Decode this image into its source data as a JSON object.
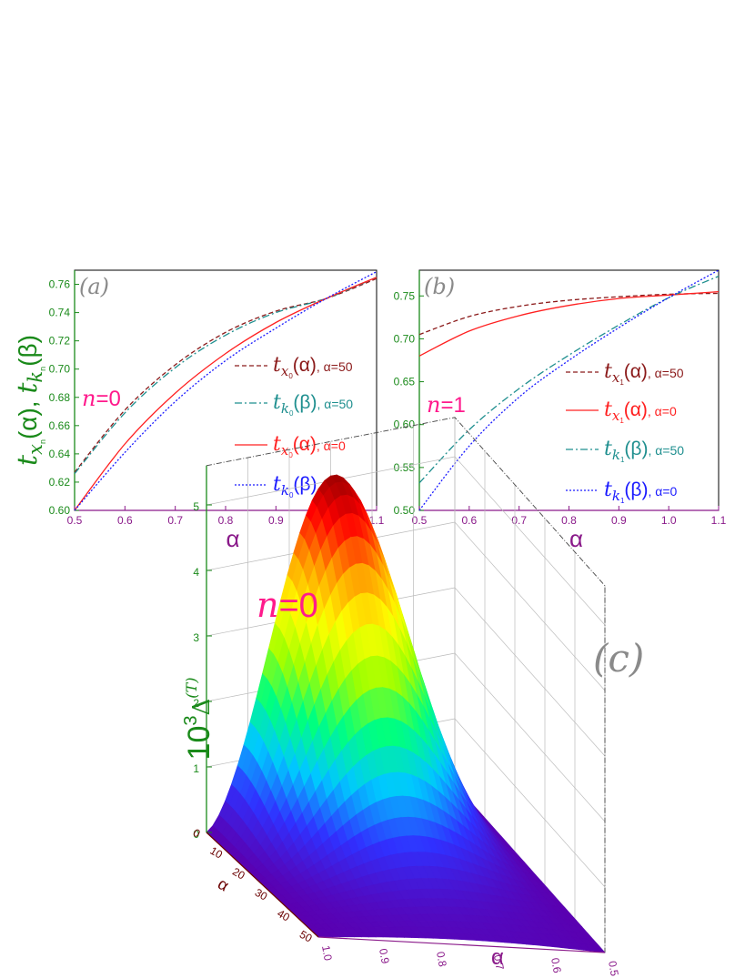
{
  "chart_data": [
    {
      "type": "line",
      "panel_label": "(a)",
      "annotation": {
        "n_italic": "n",
        "text": "=0"
      },
      "xlabel": "α",
      "ylabel": {
        "t1": "t",
        "s1": "x",
        "sub1": "n",
        "p1": "(α), ",
        "t2": "t",
        "s2": "k",
        "sub2": "n",
        "p2": "(β)"
      },
      "xlim": [
        0.5,
        1.1
      ],
      "ylim": [
        0.6,
        0.77
      ],
      "xticks": [
        "0.5",
        "0.6",
        "0.7",
        "0.8",
        "0.9",
        "1.0",
        "1.1"
      ],
      "yticks": [
        "0.60",
        "0.62",
        "0.64",
        "0.66",
        "0.68",
        "0.70",
        "0.72",
        "0.74",
        "0.76"
      ],
      "legend": [
        {
          "t": "t",
          "s": "x",
          "sub": "0",
          "arg": "(α)",
          "extra": ", α=50",
          "color": "#8b1a1a",
          "dash": "5,3"
        },
        {
          "t": "t",
          "s": "k",
          "sub": "0",
          "arg": "(β)",
          "extra": ", α=50",
          "color": "#1f8f8f",
          "dash": "8,3,2,3"
        },
        {
          "t": "t",
          "s": "x",
          "sub": "0",
          "arg": "(α)",
          "extra": ", α=0",
          "color": "#ff2020",
          "dash": ""
        },
        {
          "t": "t",
          "s": "k",
          "sub": "0",
          "arg": "(β)",
          "extra": ", α=0",
          "color": "#1a1aff",
          "dash": "2,2"
        }
      ],
      "series": [
        {
          "x": [
            0.5,
            0.6,
            0.7,
            0.8,
            0.9,
            1.0,
            1.1
          ],
          "y": [
            0.627,
            0.671,
            0.703,
            0.726,
            0.741,
            0.75,
            0.764
          ]
        },
        {
          "x": [
            0.5,
            0.6,
            0.7,
            0.8,
            0.9,
            1.0,
            1.1
          ],
          "y": [
            0.626,
            0.669,
            0.701,
            0.724,
            0.74,
            0.75,
            0.765
          ]
        },
        {
          "x": [
            0.5,
            0.6,
            0.7,
            0.8,
            0.9,
            1.0,
            1.1
          ],
          "y": [
            0.6,
            0.647,
            0.683,
            0.711,
            0.733,
            0.75,
            0.765
          ]
        },
        {
          "x": [
            0.5,
            0.6,
            0.7,
            0.8,
            0.9,
            1.0,
            1.1
          ],
          "y": [
            0.6,
            0.641,
            0.677,
            0.706,
            0.729,
            0.75,
            0.769
          ]
        }
      ]
    },
    {
      "type": "line",
      "panel_label": "(b)",
      "annotation": {
        "n_italic": "n",
        "text": "=1"
      },
      "xlabel": "α",
      "xlim": [
        0.5,
        1.1
      ],
      "ylim": [
        0.5,
        0.78
      ],
      "xticks": [
        "0.5",
        "0.6",
        "0.7",
        "0.8",
        "0.9",
        "1.0",
        "1.1"
      ],
      "yticks": [
        "0.50",
        "0.55",
        "0.60",
        "0.65",
        "0.70",
        "0.75"
      ],
      "legend": [
        {
          "t": "t",
          "s": "x",
          "sub": "1",
          "arg": "(α)",
          "extra": ", α=50",
          "color": "#8b1a1a",
          "dash": "5,3"
        },
        {
          "t": "t",
          "s": "x",
          "sub": "1",
          "arg": "(α)",
          "extra": ", α=0",
          "color": "#ff2020",
          "dash": ""
        },
        {
          "t": "t",
          "s": "k",
          "sub": "1",
          "arg": "(β)",
          "extra": ", α=50",
          "color": "#1f8f8f",
          "dash": "8,3,2,3"
        },
        {
          "t": "t",
          "s": "k",
          "sub": "1",
          "arg": "(β)",
          "extra": ", α=0",
          "color": "#1a1aff",
          "dash": "2,2"
        }
      ],
      "series": [
        {
          "x": [
            0.5,
            0.6,
            0.7,
            0.8,
            0.9,
            1.0,
            1.1
          ],
          "y": [
            0.705,
            0.726,
            0.738,
            0.745,
            0.749,
            0.752,
            0.753
          ]
        },
        {
          "x": [
            0.5,
            0.6,
            0.7,
            0.8,
            0.9,
            1.0,
            1.1
          ],
          "y": [
            0.68,
            0.709,
            0.727,
            0.739,
            0.747,
            0.751,
            0.755
          ]
        },
        {
          "x": [
            0.5,
            0.6,
            0.7,
            0.8,
            0.9,
            1.0,
            1.1
          ],
          "y": [
            0.532,
            0.594,
            0.642,
            0.681,
            0.716,
            0.748,
            0.773
          ]
        },
        {
          "x": [
            0.5,
            0.6,
            0.7,
            0.8,
            0.9,
            1.0,
            1.1
          ],
          "y": [
            0.5,
            0.575,
            0.632,
            0.675,
            0.713,
            0.748,
            0.78
          ]
        }
      ]
    },
    {
      "type": "surface",
      "panel_label": "(c)",
      "annotation": {
        "n_italic": "n",
        "text": "=0"
      },
      "zlabel": {
        "base": "10",
        "exp": "3",
        "sym": "Δ",
        "sup": "(T)"
      },
      "zticks": [
        "0",
        "1",
        "2",
        "3",
        "4",
        "5"
      ],
      "depth_label": "α",
      "depth_ticks": [
        "0",
        "10",
        "20",
        "30",
        "40",
        "50"
      ],
      "xlabel": "α",
      "xticks": [
        "1.0",
        "0.9",
        "0.8",
        "0.7",
        "0.6",
        "0.5"
      ],
      "colormap": [
        "#5a00b0",
        "#3030ff",
        "#00c8ff",
        "#00ff80",
        "#a0ff00",
        "#ffff00",
        "#ffa000",
        "#ff0000",
        "#700000"
      ],
      "peak_value": 5.1
    }
  ]
}
